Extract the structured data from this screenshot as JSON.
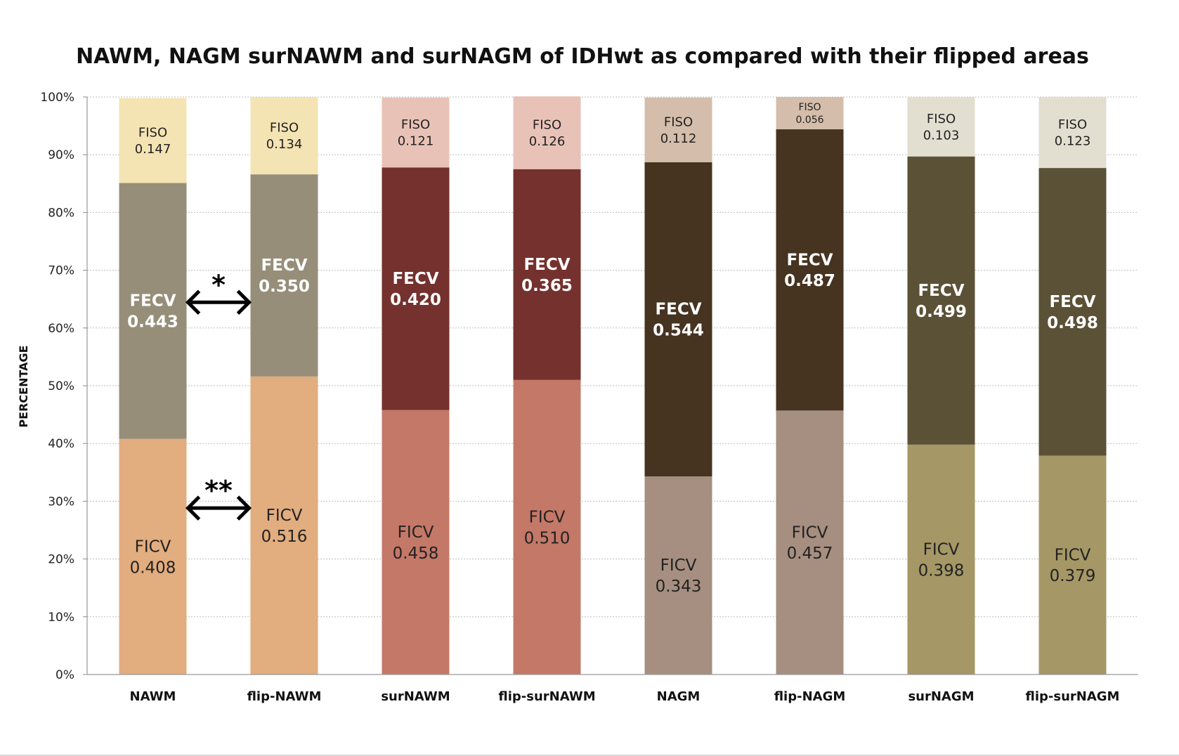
{
  "chart_data": {
    "type": "bar",
    "stacked": true,
    "title": "NAWM, NAGM surNAWM and surNAGM of IDHwt as compared with their flipped areas",
    "xlabel": "",
    "ylabel": "PERCENTAGE",
    "ylim": [
      0,
      100
    ],
    "y_ticks": [
      "0%",
      "10%",
      "20%",
      "30%",
      "40%",
      "50%",
      "60%",
      "70%",
      "80%",
      "90%",
      "100%"
    ],
    "grid": true,
    "categories": [
      "NAWM",
      "flip-NAWM",
      "surNAWM",
      "flip-surNAWM",
      "NAGM",
      "flip-NAGM",
      "surNAGM",
      "flip-surNAGM"
    ],
    "series": [
      {
        "name": "FICV",
        "values": [
          "0.408",
          "0.516",
          "0.458",
          "0.510",
          "0.343",
          "0.457",
          "0.398",
          "0.379"
        ]
      },
      {
        "name": "FECV",
        "values": [
          "0.443",
          "0.350",
          "0.420",
          "0.365",
          "0.544",
          "0.487",
          "0.499",
          "0.498"
        ]
      },
      {
        "name": "FISO",
        "values": [
          "0.147",
          "0.134",
          "0.121",
          "0.126",
          "0.112",
          "0.056",
          "0.103",
          "0.123"
        ]
      }
    ],
    "colors": {
      "FICV": [
        "#e2ad7f",
        "#e2ad7f",
        "#c47868",
        "#c47868",
        "#a68f80",
        "#a68f80",
        "#a59866",
        "#a59866"
      ],
      "FECV": [
        "#968e78",
        "#968e78",
        "#74312d",
        "#74312d",
        "#463320",
        "#463320",
        "#5b5136",
        "#5b5136"
      ],
      "FISO": [
        "#f4e3b3",
        "#f4e3b3",
        "#e9c2b7",
        "#e9c2b7",
        "#d4bdab",
        "#d4bdab",
        "#e2ded0",
        "#e2ded0"
      ]
    },
    "annotations": [
      {
        "label": "*",
        "between": [
          "NAWM",
          "flip-NAWM"
        ],
        "series": "FECV"
      },
      {
        "label": "**",
        "between": [
          "NAWM",
          "flip-NAWM"
        ],
        "series": "FICV"
      }
    ]
  }
}
